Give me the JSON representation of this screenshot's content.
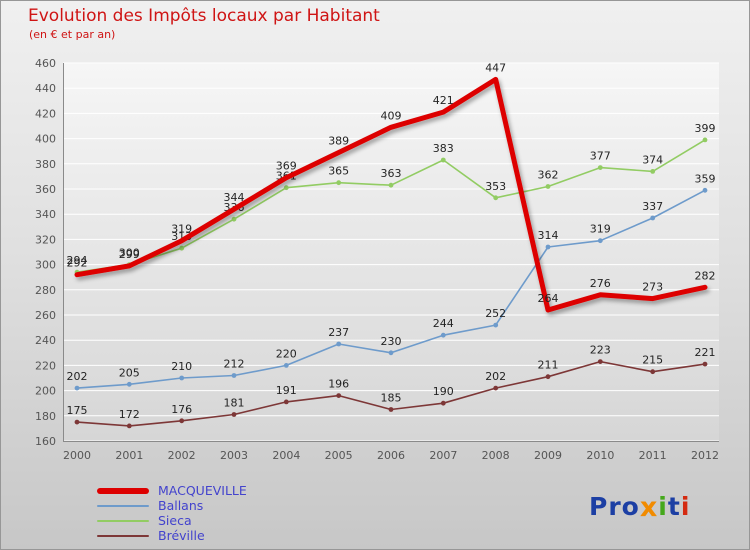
{
  "chart_data": {
    "type": "line",
    "title": "Evolution des Impôts locaux par Habitant",
    "subtitle": "(en € et par an)",
    "x": [
      2000,
      2001,
      2002,
      2003,
      2004,
      2005,
      2006,
      2007,
      2008,
      2009,
      2010,
      2011,
      2012
    ],
    "ylim": [
      160,
      460
    ],
    "yticks": [
      160,
      180,
      200,
      220,
      240,
      260,
      280,
      300,
      320,
      340,
      360,
      380,
      400,
      420,
      440,
      460
    ],
    "grid": true,
    "legend_position": "bottom-left",
    "series": [
      {
        "name": "MACQUEVILLE",
        "color": "#dd0000",
        "width": 5,
        "values": [
          292,
          299,
          319,
          344,
          369,
          389,
          409,
          421,
          447,
          264,
          276,
          273,
          282
        ]
      },
      {
        "name": "Ballans",
        "color": "#6e9bcb",
        "width": 1.6,
        "values": [
          202,
          205,
          210,
          212,
          220,
          237,
          230,
          244,
          252,
          314,
          319,
          337,
          359
        ]
      },
      {
        "name": "Sieca",
        "color": "#92cc63",
        "width": 1.6,
        "values": [
          294,
          300,
          313,
          336,
          361,
          365,
          363,
          383,
          353,
          362,
          377,
          374,
          399
        ]
      },
      {
        "name": "Bréville",
        "color": "#7d3737",
        "width": 1.6,
        "values": [
          175,
          172,
          176,
          181,
          191,
          196,
          185,
          190,
          202,
          211,
          223,
          215,
          221
        ]
      }
    ]
  },
  "logo": {
    "letters": [
      {
        "ch": "P",
        "color": "#1c3fa4"
      },
      {
        "ch": "r",
        "color": "#1c3fa4"
      },
      {
        "ch": "o",
        "color": "#1c3fa4"
      },
      {
        "ch": "x",
        "color": "#f18b00"
      },
      {
        "ch": "i",
        "color": "#45a81c"
      },
      {
        "ch": "t",
        "color": "#1c3fa4"
      },
      {
        "ch": "i",
        "color": "#d42a10"
      }
    ]
  }
}
